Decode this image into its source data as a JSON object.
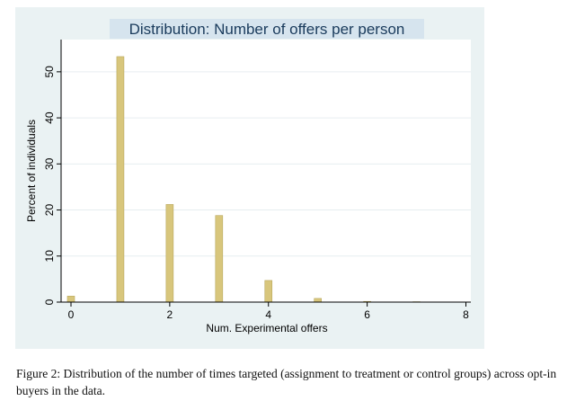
{
  "chart_data": {
    "type": "bar",
    "title": "Distribution: Number of offers per person",
    "xlabel": "Num. Experimental offers",
    "ylabel": "Percent of individuals",
    "x": [
      0,
      1,
      2,
      3,
      4,
      5,
      6,
      7
    ],
    "values": [
      1.3,
      53.3,
      21.2,
      18.8,
      4.7,
      0.8,
      0.15,
      0.08
    ],
    "xlim": [
      -0.2,
      8.1
    ],
    "ylim": [
      0,
      57
    ],
    "xticks": [
      "0",
      "2",
      "4",
      "6",
      "8"
    ],
    "yticks": [
      "0",
      "10",
      "20",
      "30",
      "40",
      "50"
    ],
    "grid": true,
    "colors": {
      "bar_fill": "#d8c67c",
      "bar_stroke": "#b9a85e",
      "background": "#eaf2f3",
      "plot_area": "#ffffff",
      "title_box": "#d6e4ee",
      "gridline": "#e6eef0"
    }
  },
  "caption": "Figure 2: Distribution of the number of times targeted (assignment to treatment or control groups) across opt-in buyers in the data."
}
